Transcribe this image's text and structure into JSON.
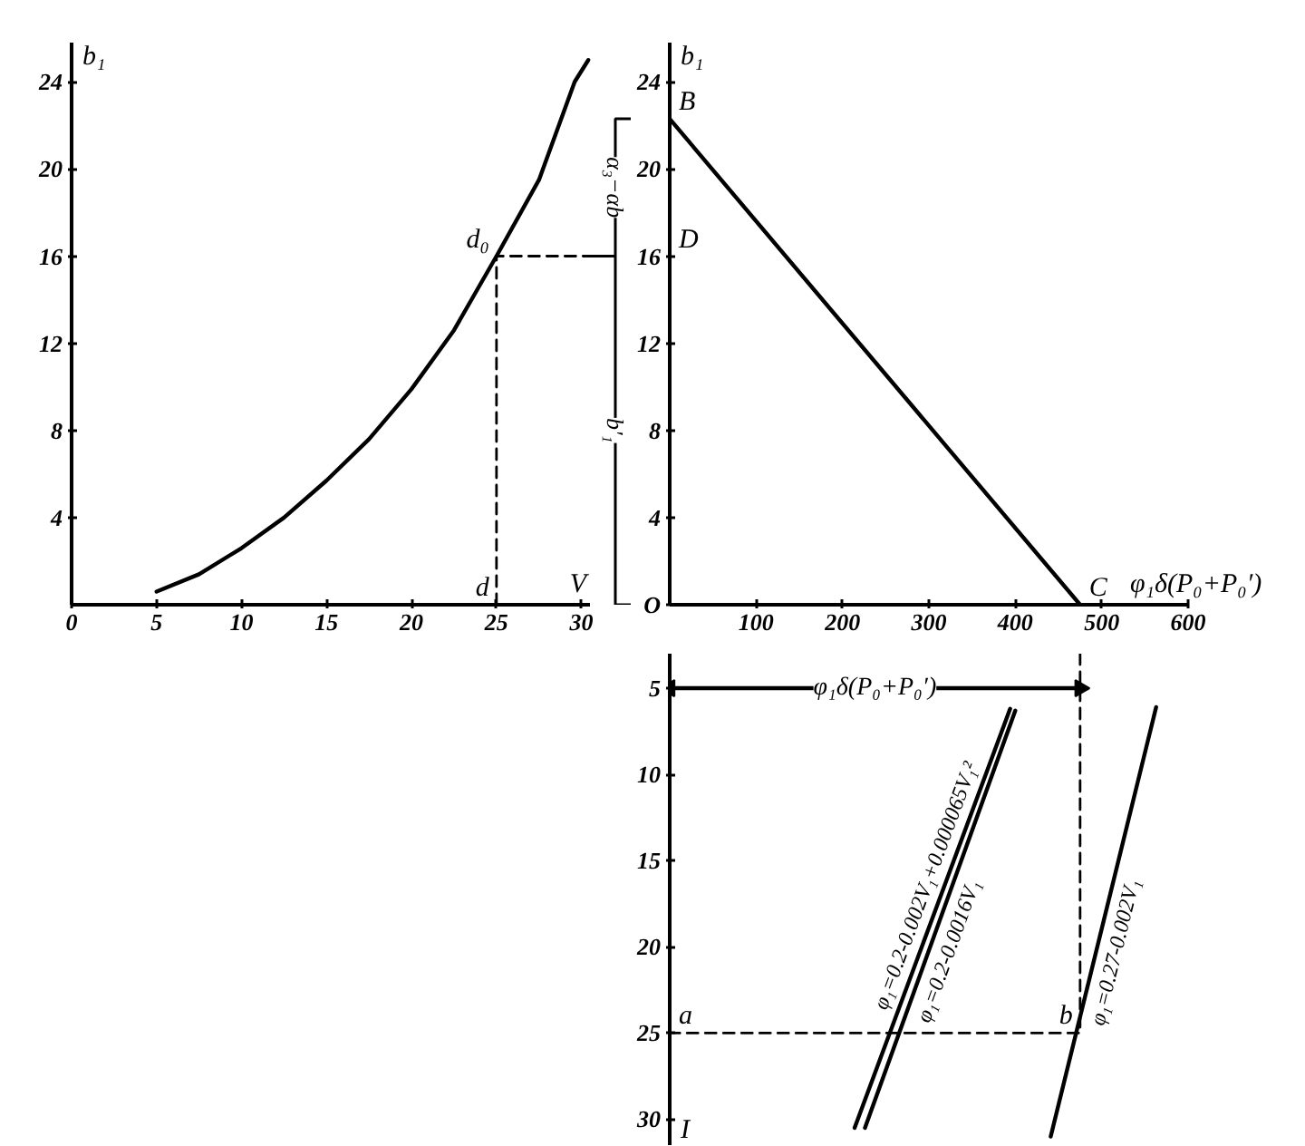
{
  "chart_data": [
    {
      "type": "line",
      "xlabel": "V",
      "ylabel": "b₁",
      "xlim": [
        0,
        30.5
      ],
      "ylim": [
        0,
        25.8
      ],
      "xticks": [
        0,
        5,
        10,
        15,
        20,
        25,
        30
      ],
      "yticks": [
        4,
        8,
        12,
        16,
        20,
        24
      ],
      "series": [
        {
          "color": "#000000",
          "x": [
            5,
            7.5,
            10,
            12.5,
            15,
            17.5,
            20,
            22.5,
            25,
            27.5,
            29.6,
            30.4
          ],
          "values": [
            0.6,
            1.4,
            2.6,
            4,
            5.7,
            7.6,
            9.9,
            12.6,
            16,
            19.5,
            24,
            25
          ]
        },
        {
          "color": "#000000",
          "line_style": "dashed",
          "x": [
            25,
            25,
            30.5
          ],
          "values": [
            0,
            16,
            16
          ]
        }
      ],
      "annotations": [
        {
          "text": "d",
          "x": 25,
          "y": 0
        },
        {
          "text": "d₀",
          "x": 25,
          "y": 16
        },
        "α₃−αb",
        "b′₁"
      ]
    },
    {
      "type": "line",
      "xlabel": "φ₁δ(P₀+P₀′)",
      "ylabel": "b₁",
      "xlim": [
        0,
        600
      ],
      "ylim": [
        0,
        25.8
      ],
      "xticks": [
        100,
        200,
        300,
        400,
        500,
        600
      ],
      "yticks": [
        {
          "value": 0,
          "label": "O"
        },
        4,
        8,
        12,
        16,
        20,
        24
      ],
      "series": [
        {
          "color": "#000000",
          "x": [
            0,
            475
          ],
          "values": [
            22.3,
            0
          ]
        }
      ],
      "annotations": [
        {
          "text": "B",
          "x": 0,
          "y": 22.3
        },
        "D",
        {
          "text": "C",
          "x": 475,
          "y": 0
        }
      ]
    },
    {
      "type": "line",
      "ylabel": "I",
      "xlim": [
        0,
        600
      ],
      "ylim": [
        31.5,
        3
      ],
      "yticks": [
        5,
        10,
        15,
        20,
        25,
        30
      ],
      "tick_labels": "y",
      "series": [
        {
          "name": "φ₁=0.2-0.002V₁+0.000065V₁²",
          "color": "#000000",
          "x": [
            394,
            214
          ],
          "values": [
            6.2,
            30.5
          ]
        },
        {
          "name": "φ₁=0.2-0.0016V₁",
          "color": "#000000",
          "x": [
            400,
            226
          ],
          "values": [
            6.3,
            30.5
          ]
        },
        {
          "name": "φ₁=0.27-0.002V₁",
          "color": "#000000",
          "x": [
            563,
            441
          ],
          "values": [
            6.1,
            31
          ]
        },
        {
          "color": "#000000",
          "line_style": "dashed",
          "x": [
            475,
            475,
            0
          ],
          "values": [
            3,
            25,
            25
          ]
        },
        {
          "color": "#000000",
          "marker": "triangle",
          "x": [
            0,
            475
          ],
          "values": [
            5,
            5
          ]
        }
      ],
      "annotations": [
        "φ₁δ(P₀+P₀′)",
        {
          "text": "a",
          "x": 0,
          "y": 25
        },
        {
          "text": "b",
          "x": 475,
          "y": 25
        }
      ]
    }
  ]
}
